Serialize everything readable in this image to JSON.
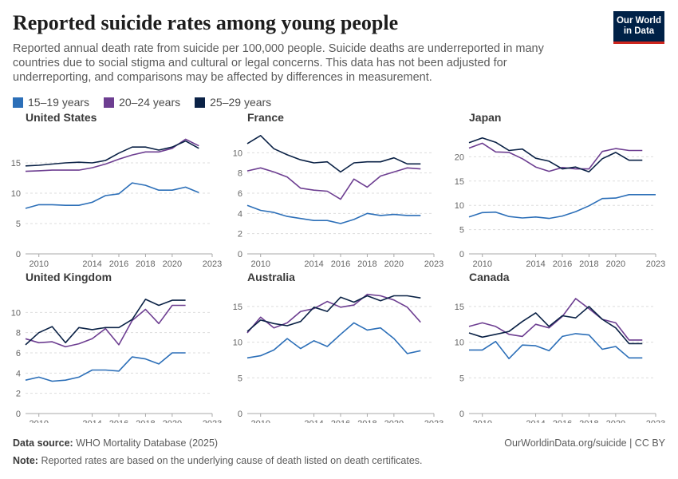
{
  "title": "Reported suicide rates among young people",
  "subtitle": "Reported annual death rate from suicide per 100,000 people. Suicide deaths are underreported in many countries due to social stigma and cultural or legal concerns. This data has not been adjusted for underreporting, and comparisons may be affected by differences in measurement.",
  "logo": {
    "line1": "Our World",
    "line2": "in Data"
  },
  "legend": [
    {
      "label": "15–19 years",
      "color": "#2c6fb8"
    },
    {
      "label": "20–24 years",
      "color": "#6d3e91"
    },
    {
      "label": "25–29 years",
      "color": "#0b2246"
    }
  ],
  "footer": {
    "source_label": "Data source:",
    "source_value": "WHO Mortality Database (2025)",
    "note_label": "Note:",
    "note_value": "Reported rates are based on the underlying cause of death listed on death certificates.",
    "credit": "OurWorldinData.org/suicide | CC BY"
  },
  "chart_data": [
    {
      "type": "line",
      "title": "United States",
      "x_ticks": [
        "2010",
        "2014",
        "2016",
        "2018",
        "2020",
        "2023"
      ],
      "xlim": [
        2009,
        2023
      ],
      "ylim": [
        0,
        20
      ],
      "y_ticks": [
        0,
        5,
        10,
        15
      ],
      "series": [
        {
          "name": "15–19 years",
          "x": [
            2009,
            2010,
            2011,
            2012,
            2013,
            2014,
            2015,
            2016,
            2017,
            2018,
            2019,
            2020,
            2021,
            2022
          ],
          "values": [
            7.5,
            8.1,
            8.1,
            8.0,
            8.0,
            8.5,
            9.6,
            9.9,
            11.7,
            11.3,
            10.5,
            10.5,
            11.0,
            10.1
          ]
        },
        {
          "name": "20–24 years",
          "x": [
            2009,
            2010,
            2011,
            2012,
            2013,
            2014,
            2015,
            2016,
            2017,
            2018,
            2019,
            2020,
            2021,
            2022
          ],
          "values": [
            13.6,
            13.7,
            13.8,
            13.8,
            13.8,
            14.2,
            14.8,
            15.6,
            16.3,
            16.8,
            16.8,
            17.4,
            18.9,
            17.8
          ]
        },
        {
          "name": "25–29 years",
          "x": [
            2009,
            2010,
            2011,
            2012,
            2013,
            2014,
            2015,
            2016,
            2017,
            2018,
            2019,
            2020,
            2021,
            2022
          ],
          "values": [
            14.5,
            14.6,
            14.8,
            15.0,
            15.1,
            15.0,
            15.4,
            16.6,
            17.6,
            17.6,
            17.1,
            17.6,
            18.6,
            17.4
          ]
        }
      ]
    },
    {
      "type": "line",
      "title": "France",
      "x_ticks": [
        "2010",
        "2014",
        "2016",
        "2018",
        "2020",
        "2023"
      ],
      "xlim": [
        2009,
        2023
      ],
      "ylim": [
        0,
        12
      ],
      "y_ticks": [
        0,
        2,
        4,
        6,
        8,
        10
      ],
      "series": [
        {
          "name": "15–19 years",
          "x": [
            2009,
            2010,
            2011,
            2012,
            2013,
            2014,
            2015,
            2016,
            2017,
            2018,
            2019,
            2020,
            2021,
            2022
          ],
          "values": [
            4.8,
            4.3,
            4.1,
            3.7,
            3.5,
            3.3,
            3.3,
            3.0,
            3.4,
            4.0,
            3.8,
            3.9,
            3.8,
            3.8
          ]
        },
        {
          "name": "20–24 years",
          "x": [
            2009,
            2010,
            2011,
            2012,
            2013,
            2014,
            2015,
            2016,
            2017,
            2018,
            2019,
            2020,
            2021,
            2022
          ],
          "values": [
            8.2,
            8.5,
            8.1,
            7.6,
            6.5,
            6.3,
            6.2,
            5.4,
            7.4,
            6.6,
            7.7,
            8.1,
            8.5,
            8.4
          ]
        },
        {
          "name": "25–29 years",
          "x": [
            2009,
            2010,
            2011,
            2012,
            2013,
            2014,
            2015,
            2016,
            2017,
            2018,
            2019,
            2020,
            2021,
            2022
          ],
          "values": [
            10.9,
            11.7,
            10.4,
            9.8,
            9.3,
            9.0,
            9.1,
            8.1,
            9.0,
            9.1,
            9.1,
            9.5,
            8.9,
            8.9
          ]
        }
      ]
    },
    {
      "type": "line",
      "title": "Japan",
      "x_ticks": [
        "2010",
        "2014",
        "2016",
        "2018",
        "2020",
        "2023"
      ],
      "xlim": [
        2009,
        2023
      ],
      "ylim": [
        0,
        25
      ],
      "y_ticks": [
        0,
        5,
        10,
        15,
        20
      ],
      "series": [
        {
          "name": "15–19 years",
          "x": [
            2009,
            2010,
            2011,
            2012,
            2013,
            2014,
            2015,
            2016,
            2017,
            2018,
            2019,
            2020,
            2021,
            2022,
            2023
          ],
          "values": [
            7.6,
            8.5,
            8.6,
            7.7,
            7.4,
            7.6,
            7.3,
            7.8,
            8.7,
            9.9,
            11.4,
            11.5,
            12.2,
            12.2,
            12.2
          ]
        },
        {
          "name": "20–24 years",
          "x": [
            2009,
            2010,
            2011,
            2012,
            2013,
            2014,
            2015,
            2016,
            2017,
            2018,
            2019,
            2020,
            2021,
            2022
          ],
          "values": [
            21.8,
            22.8,
            21.0,
            20.9,
            19.6,
            17.9,
            17.0,
            17.8,
            17.5,
            17.5,
            21.1,
            21.7,
            21.3,
            21.3
          ]
        },
        {
          "name": "25–29 years",
          "x": [
            2009,
            2010,
            2011,
            2012,
            2013,
            2014,
            2015,
            2016,
            2017,
            2018,
            2019,
            2020,
            2021,
            2022
          ],
          "values": [
            22.9,
            23.9,
            23.0,
            21.3,
            21.6,
            19.7,
            19.1,
            17.5,
            17.9,
            16.9,
            19.6,
            20.9,
            19.3,
            19.3
          ]
        }
      ]
    },
    {
      "type": "line",
      "title": "United Kingdom",
      "x_ticks": [
        "2010",
        "2014",
        "2016",
        "2018",
        "2020",
        "2023"
      ],
      "xlim": [
        2009,
        2023
      ],
      "ylim": [
        0,
        12
      ],
      "y_ticks": [
        0,
        2,
        4,
        6,
        8,
        10
      ],
      "series": [
        {
          "name": "15–19 years",
          "x": [
            2009,
            2010,
            2011,
            2012,
            2013,
            2014,
            2015,
            2016,
            2017,
            2018,
            2019,
            2020,
            2021
          ],
          "values": [
            3.3,
            3.6,
            3.2,
            3.3,
            3.6,
            4.3,
            4.3,
            4.2,
            5.6,
            5.4,
            4.9,
            6.0,
            6.0
          ]
        },
        {
          "name": "20–24 years",
          "x": [
            2009,
            2010,
            2011,
            2012,
            2013,
            2014,
            2015,
            2016,
            2017,
            2018,
            2019,
            2020,
            2021
          ],
          "values": [
            7.4,
            7.0,
            7.1,
            6.6,
            6.9,
            7.4,
            8.4,
            6.8,
            9.2,
            10.3,
            8.9,
            10.7,
            10.7
          ]
        },
        {
          "name": "25–29 years",
          "x": [
            2009,
            2010,
            2011,
            2012,
            2013,
            2014,
            2015,
            2016,
            2017,
            2018,
            2019,
            2020,
            2021
          ],
          "values": [
            6.8,
            8.0,
            8.6,
            7.0,
            8.5,
            8.3,
            8.5,
            8.5,
            9.3,
            11.3,
            10.7,
            11.2,
            11.2
          ]
        }
      ]
    },
    {
      "type": "line",
      "title": "Australia",
      "x_ticks": [
        "2010",
        "2014",
        "2016",
        "2018",
        "2020",
        "2023"
      ],
      "xlim": [
        2009,
        2023
      ],
      "ylim": [
        0,
        17
      ],
      "y_ticks": [
        0,
        5,
        10,
        15
      ],
      "series": [
        {
          "name": "15–19 years",
          "x": [
            2009,
            2010,
            2011,
            2012,
            2013,
            2014,
            2015,
            2016,
            2017,
            2018,
            2019,
            2020,
            2021,
            2022
          ],
          "values": [
            7.8,
            8.1,
            8.9,
            10.5,
            9.1,
            10.2,
            9.4,
            11.1,
            12.7,
            11.7,
            12.0,
            10.5,
            8.4,
            8.8
          ]
        },
        {
          "name": "20–24 years",
          "x": [
            2009,
            2010,
            2011,
            2012,
            2013,
            2014,
            2015,
            2016,
            2017,
            2018,
            2019,
            2020,
            2021,
            2022
          ],
          "values": [
            11.3,
            13.5,
            12.0,
            12.7,
            14.3,
            14.7,
            15.7,
            14.9,
            15.2,
            16.7,
            16.5,
            15.9,
            14.9,
            12.8
          ]
        },
        {
          "name": "25–29 years",
          "x": [
            2009,
            2010,
            2011,
            2012,
            2013,
            2014,
            2015,
            2016,
            2017,
            2018,
            2019,
            2020,
            2021,
            2022
          ],
          "values": [
            11.5,
            13.1,
            12.6,
            12.3,
            12.9,
            14.9,
            14.3,
            16.3,
            15.6,
            16.5,
            15.8,
            16.5,
            16.5,
            16.2
          ]
        }
      ]
    },
    {
      "type": "line",
      "title": "Canada",
      "x_ticks": [
        "2010",
        "2014",
        "2016",
        "2018",
        "2020",
        "2023"
      ],
      "xlim": [
        2009,
        2023
      ],
      "ylim": [
        0,
        17
      ],
      "y_ticks": [
        0,
        5,
        10,
        15
      ],
      "series": [
        {
          "name": "15–19 years",
          "x": [
            2009,
            2010,
            2011,
            2012,
            2013,
            2014,
            2015,
            2016,
            2017,
            2018,
            2019,
            2020,
            2021,
            2022
          ],
          "values": [
            8.9,
            8.9,
            10.1,
            7.7,
            9.6,
            9.5,
            8.8,
            10.8,
            11.2,
            11.0,
            9.0,
            9.4,
            7.8,
            7.8
          ]
        },
        {
          "name": "20–24 years",
          "x": [
            2009,
            2010,
            2011,
            2012,
            2013,
            2014,
            2015,
            2016,
            2017,
            2018,
            2019,
            2020,
            2021,
            2022
          ],
          "values": [
            12.2,
            12.7,
            12.2,
            11.1,
            10.8,
            12.5,
            12.0,
            13.6,
            16.1,
            14.7,
            13.2,
            12.7,
            10.3,
            10.3
          ]
        },
        {
          "name": "25–29 years",
          "x": [
            2009,
            2010,
            2011,
            2012,
            2013,
            2014,
            2015,
            2016,
            2017,
            2018,
            2019,
            2020,
            2021,
            2022
          ],
          "values": [
            11.3,
            10.7,
            11.1,
            11.5,
            12.9,
            14.1,
            12.2,
            13.7,
            13.4,
            15.0,
            13.2,
            12.0,
            9.8,
            9.8
          ]
        }
      ]
    }
  ]
}
